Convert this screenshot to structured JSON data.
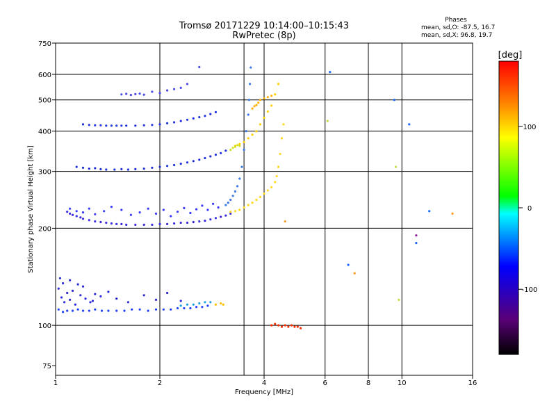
{
  "header": {
    "title_line1": "Tromsø 20171229 10:14:00–10:15:43",
    "title_line2": "RwPretec (8p)"
  },
  "stats": {
    "heading": "Phases",
    "o_line": "mean, sd,O: -87.5, 16.7",
    "x_line": "mean, sd,X:  96.8, 19.7"
  },
  "chart_data": {
    "type": "scatter",
    "xlabel": "Frequency [MHz]",
    "ylabel": "Stationary phase Virtual Height [km]",
    "x_scale": "log",
    "y_scale": "log",
    "xlim": [
      1,
      16
    ],
    "ylim": [
      70,
      750
    ],
    "x_ticks": [
      1,
      2,
      4,
      6,
      8,
      10,
      16
    ],
    "x_grid": [
      2,
      3.5,
      4,
      6,
      8,
      10
    ],
    "y_ticks": [
      75,
      100,
      200,
      300,
      400,
      500,
      600,
      750
    ],
    "y_grid": [
      100,
      200,
      300,
      400,
      500,
      600
    ],
    "grid": true,
    "colorbar": {
      "label": "[deg]",
      "min": -180,
      "max": 180,
      "ticks": [
        100,
        0,
        -100
      ],
      "colors": [
        "#000000",
        "#5a0078",
        "#0000ff",
        "#00ffff",
        "#00ff00",
        "#ffff00",
        "#ff8000",
        "#ff0000"
      ]
    },
    "series": [
      {
        "color": "#1f3fff",
        "x": [
          1.02,
          1.05,
          1.08,
          1.12,
          1.16,
          1.2,
          1.25,
          1.3,
          1.36,
          1.42,
          1.5,
          1.58,
          1.66,
          1.75,
          1.85,
          1.95,
          2.05,
          2.15,
          2.25,
          2.35,
          2.45,
          2.55,
          2.65,
          2.75
        ],
        "y": [
          112,
          110,
          111,
          111,
          112,
          111,
          111,
          112,
          111,
          111,
          111,
          111,
          112,
          112,
          111,
          112,
          112,
          112,
          113,
          113,
          113,
          114,
          114,
          115
        ]
      },
      {
        "color": "#2a2ad8",
        "x": [
          1.02,
          1.04,
          1.06,
          1.08,
          1.1,
          1.14,
          1.18,
          1.22,
          1.26,
          1.3,
          1.05,
          1.12,
          1.2,
          1.28,
          1.35,
          1.42,
          1.5,
          1.62,
          1.8,
          1.95,
          2.1,
          2.3,
          1.03,
          1.1,
          1.16
        ],
        "y": [
          130,
          122,
          118,
          126,
          120,
          116,
          124,
          121,
          118,
          125,
          135,
          128,
          132,
          119,
          123,
          127,
          121,
          118,
          124,
          120,
          126,
          119,
          140,
          138,
          134
        ]
      },
      {
        "color": "#3a2ae0",
        "x": [
          1.08,
          1.1,
          1.12,
          1.15,
          1.18,
          1.2,
          1.25,
          1.3,
          1.35,
          1.4,
          1.45,
          1.5,
          1.55,
          1.6,
          1.7,
          1.8,
          1.9,
          2.0,
          2.1,
          2.2,
          2.3,
          2.4,
          2.5,
          2.6,
          2.7,
          2.8,
          2.9,
          3.0,
          3.1,
          3.2
        ],
        "y": [
          225,
          222,
          220,
          218,
          216,
          214,
          212,
          210,
          209,
          208,
          207,
          206,
          206,
          205,
          205,
          205,
          205,
          206,
          206,
          207,
          208,
          208,
          209,
          210,
          211,
          213,
          215,
          217,
          219,
          222
        ]
      },
      {
        "color": "#3a3aff",
        "x": [
          1.1,
          1.15,
          1.2,
          1.25,
          1.3,
          1.38,
          1.45,
          1.55,
          1.65,
          1.75,
          1.85,
          1.95,
          2.05,
          2.15,
          2.25,
          2.35,
          2.45,
          2.55,
          2.65,
          2.75,
          2.85,
          2.95
        ],
        "y": [
          230,
          226,
          224,
          230,
          221,
          226,
          233,
          228,
          220,
          224,
          230,
          222,
          228,
          218,
          225,
          231,
          223,
          229,
          235,
          228,
          238,
          232
        ]
      },
      {
        "color": "#2233dd",
        "x": [
          1.15,
          1.2,
          1.25,
          1.3,
          1.35,
          1.4,
          1.48,
          1.55,
          1.62,
          1.7,
          1.8,
          1.9,
          2.0,
          2.1,
          2.2,
          2.3,
          2.4,
          2.5,
          2.6,
          2.7,
          2.8,
          2.9,
          3.0,
          3.1
        ],
        "y": [
          310,
          308,
          306,
          307,
          305,
          304,
          304,
          305,
          304,
          305,
          306,
          308,
          310,
          312,
          314,
          317,
          320,
          323,
          326,
          330,
          334,
          338,
          342,
          348
        ]
      },
      {
        "color": "#2233dd",
        "x": [
          1.2,
          1.25,
          1.3,
          1.35,
          1.4,
          1.45,
          1.5,
          1.55,
          1.6,
          1.7,
          1.8,
          1.9,
          2.0,
          2.1,
          2.2,
          2.3,
          2.4,
          2.5,
          2.6,
          2.7,
          2.8,
          2.9
        ],
        "y": [
          420,
          418,
          417,
          417,
          416,
          416,
          416,
          416,
          416,
          416,
          417,
          418,
          420,
          423,
          426,
          430,
          434,
          438,
          442,
          446,
          452,
          458
        ]
      },
      {
        "color": "#4a4ae8",
        "x": [
          1.55,
          1.6,
          1.65,
          1.7,
          1.75,
          1.8,
          1.9,
          2.0,
          2.1,
          2.2,
          2.3,
          2.4,
          2.6
        ],
        "y": [
          520,
          522,
          518,
          521,
          523,
          519,
          530,
          525,
          535,
          540,
          545,
          560,
          632
        ]
      },
      {
        "color": "#3a7ae8",
        "x": [
          3.1,
          3.15,
          3.2,
          3.25,
          3.3,
          3.35,
          3.4,
          3.45,
          3.5,
          3.55,
          3.6,
          3.62,
          3.64,
          3.66
        ],
        "y": [
          236,
          240,
          245,
          252,
          260,
          270,
          285,
          310,
          350,
          400,
          450,
          500,
          560,
          630
        ]
      },
      {
        "color": "#ffd820",
        "x": [
          3.2,
          3.3,
          3.4,
          3.5,
          3.6,
          3.7,
          3.8,
          3.9,
          4.0,
          4.1,
          4.2,
          4.3,
          4.35,
          4.4,
          4.45,
          4.5,
          4.55
        ],
        "y": [
          225,
          226,
          228,
          232,
          236,
          240,
          245,
          250,
          256,
          262,
          268,
          278,
          290,
          310,
          340,
          380,
          420
        ]
      },
      {
        "color": "#ffd000",
        "x": [
          3.3,
          3.4,
          3.5,
          3.6,
          3.7,
          3.8,
          3.9,
          4.0,
          4.1,
          4.2,
          4.3,
          4.4
        ],
        "y": [
          360,
          365,
          370,
          380,
          390,
          400,
          420,
          440,
          460,
          480,
          520,
          560
        ]
      },
      {
        "color": "#d0e020",
        "x": [
          3.2,
          3.25,
          3.3,
          3.35,
          3.4
        ],
        "y": [
          350,
          355,
          358,
          362,
          360
        ]
      },
      {
        "color": "#ffb000",
        "x": [
          3.7,
          3.75,
          3.8,
          3.85,
          3.9,
          4.0,
          4.1,
          4.2
        ],
        "y": [
          470,
          478,
          482,
          490,
          500,
          505,
          510,
          515
        ]
      },
      {
        "color": "#ff3000",
        "x": [
          4.2,
          4.3,
          4.4,
          4.5,
          4.6,
          4.7,
          4.8,
          4.9,
          5.0,
          5.1
        ],
        "y": [
          100,
          101,
          100,
          99,
          100,
          99,
          100,
          99,
          99,
          98
        ]
      },
      {
        "color": "#1aa0e0",
        "x": [
          2.3,
          2.4,
          2.5,
          2.6,
          2.7,
          2.8
        ],
        "y": [
          115,
          116,
          116,
          117,
          118,
          118
        ]
      },
      {
        "color": "#ffc000",
        "x": [
          2.9,
          3.0,
          3.05
        ],
        "y": [
          116,
          117,
          116
        ]
      },
      {
        "color": "#8a1a9a",
        "x": [
          11.0
        ],
        "y": [
          190
        ]
      },
      {
        "color": "#1a66ff",
        "x": [
          6.2,
          7.0,
          11.0,
          9.5,
          10.5,
          12.0
        ],
        "y": [
          610,
          154,
          180,
          500,
          420,
          226
        ]
      },
      {
        "color": "#ff9a20",
        "x": [
          7.3,
          14.0,
          4.6
        ],
        "y": [
          145,
          222,
          210
        ]
      },
      {
        "color": "#c0e040",
        "x": [
          9.8,
          6.1,
          9.6
        ],
        "y": [
          120,
          430,
          310
        ]
      }
    ]
  }
}
